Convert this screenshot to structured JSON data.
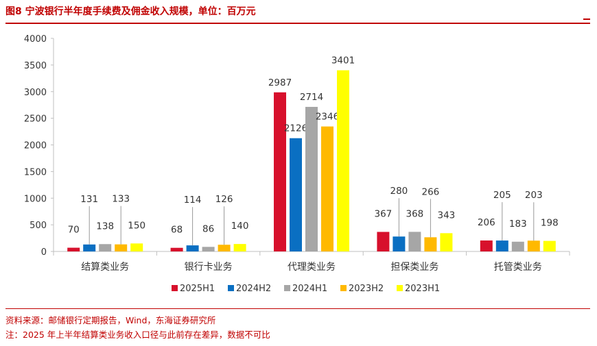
{
  "title": "图8  宁波银行半年度手续费及佣金收入规模，单位：百万元",
  "notes": {
    "source": "资料来源：邮储银行定期报告，Wind，东海证券研究所",
    "remark": "注：2025 年上半年结算类业务收入口径与此前存在差异，数据不可比"
  },
  "chart_data": {
    "type": "bar",
    "title": "宁波银行半年度手续费及佣金收入规模，单位：百万元",
    "xlabel": "",
    "ylabel": "",
    "ylim": [
      0,
      4000
    ],
    "yticks": [
      0,
      500,
      1000,
      1500,
      2000,
      2500,
      3000,
      3500,
      4000
    ],
    "categories": [
      "结算类业务",
      "银行卡业务",
      "代理类业务",
      "担保类业务",
      "托管类业务"
    ],
    "series": [
      {
        "name": "2025H1",
        "color": "#d7102c",
        "values": [
          70,
          68,
          2987,
          367,
          206
        ]
      },
      {
        "name": "2024H2",
        "color": "#0a6fc2",
        "values": [
          131,
          114,
          2126,
          280,
          205
        ]
      },
      {
        "name": "2024H1",
        "color": "#a6a6a6",
        "values": [
          138,
          86,
          2714,
          368,
          183
        ]
      },
      {
        "name": "2023H2",
        "color": "#ffb900",
        "values": [
          133,
          126,
          2346,
          266,
          203
        ]
      },
      {
        "name": "2023H1",
        "color": "#ffff00",
        "values": [
          150,
          140,
          3401,
          343,
          198
        ]
      }
    ],
    "legend": "bottom"
  }
}
